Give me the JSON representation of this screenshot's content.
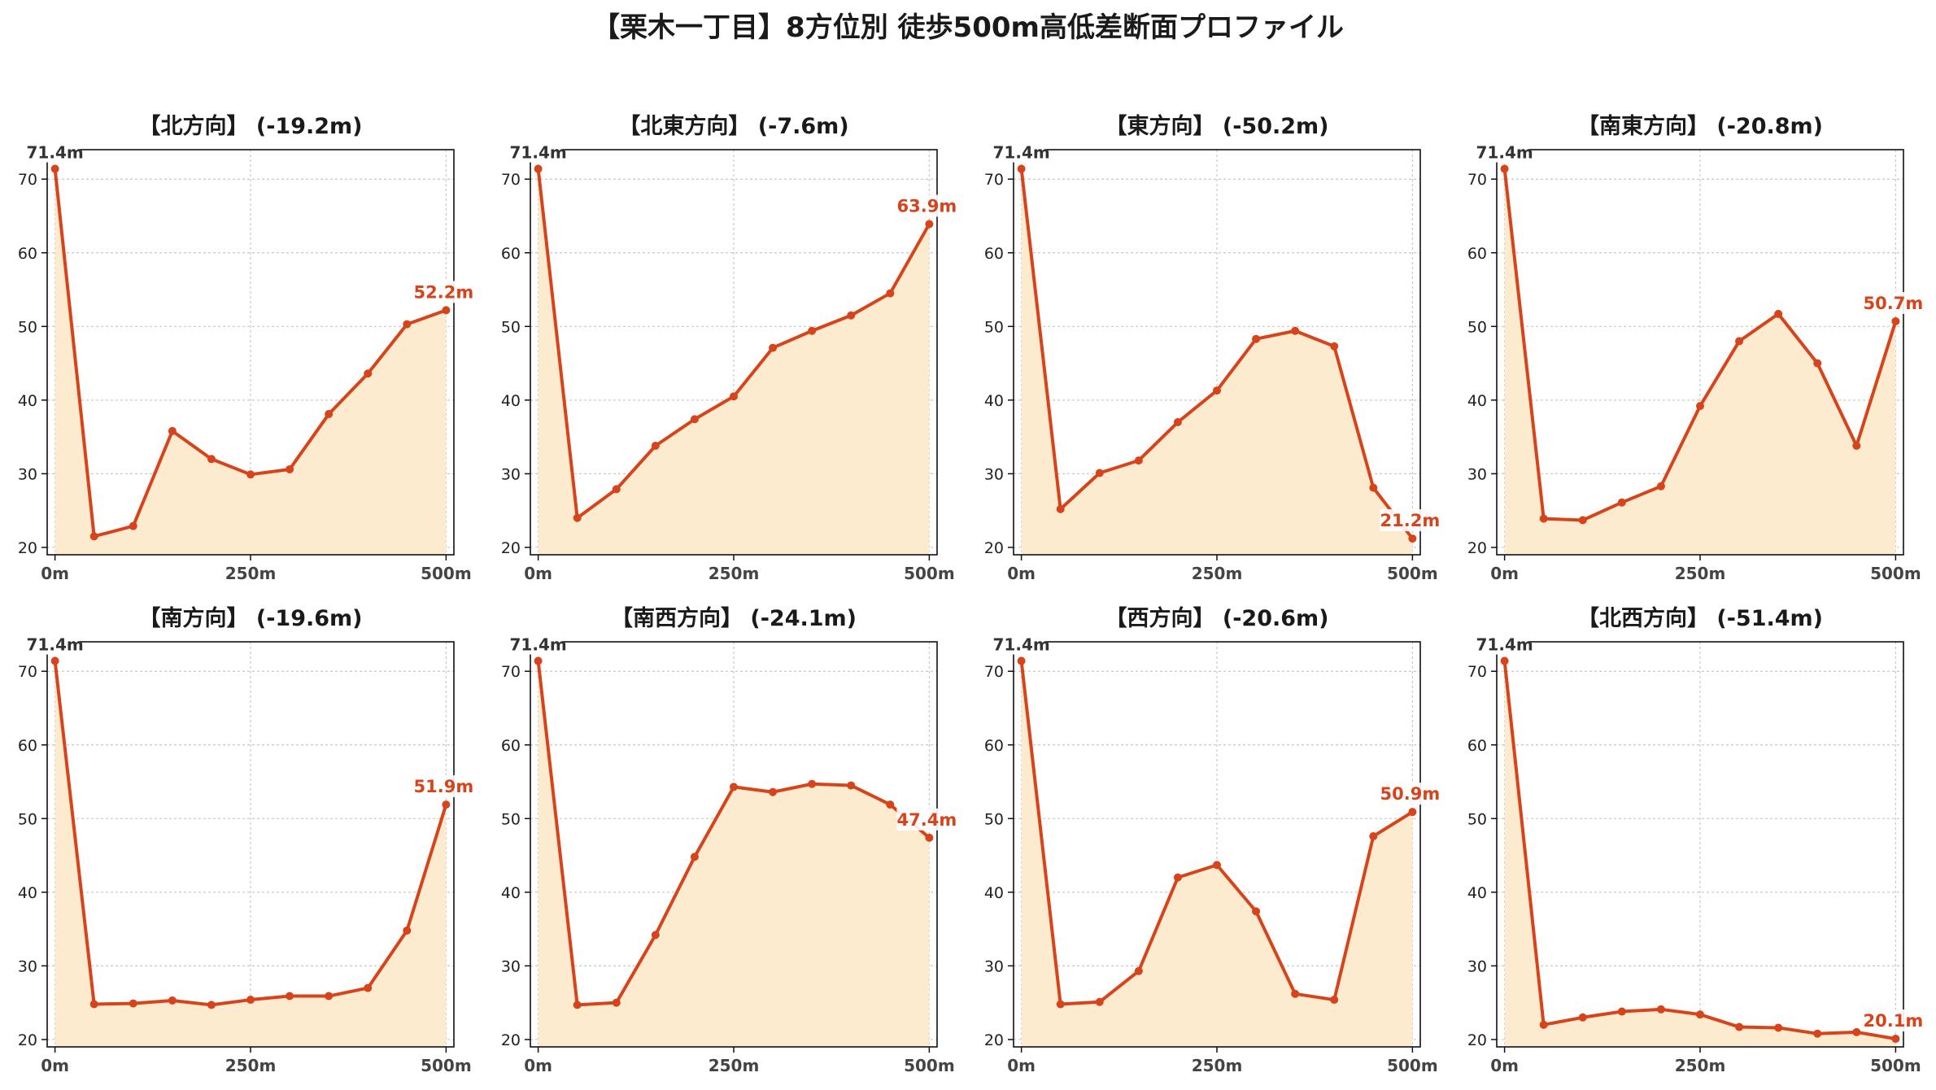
{
  "title": "【栗木一丁目】8方位別 徒歩500m高低差断面プロファイル",
  "colors": {
    "line": "#d7431a",
    "fill": "#fdebd0",
    "grid": "#c8c8c8"
  },
  "chart_data": [
    {
      "type": "area",
      "title": "【北方向】 (-19.2m)",
      "x": [
        0,
        50,
        100,
        150,
        200,
        250,
        300,
        350,
        400,
        450,
        500
      ],
      "values": [
        71.4,
        21.5,
        22.9,
        35.8,
        32.0,
        29.9,
        30.6,
        38.1,
        43.6,
        50.3,
        52.2
      ],
      "start_label": "71.4m",
      "end_label": "52.2m",
      "x_ticks": [
        "0m",
        "250m",
        "500m"
      ],
      "y_ticks": [
        "20",
        "30",
        "40",
        "50",
        "60",
        "70"
      ],
      "ylim": [
        19,
        74
      ],
      "xlim": [
        -10,
        510
      ],
      "grid": true
    },
    {
      "type": "area",
      "title": "【北東方向】 (-7.6m)",
      "x": [
        0,
        50,
        100,
        150,
        200,
        250,
        300,
        350,
        400,
        450,
        500
      ],
      "values": [
        71.4,
        24.0,
        27.9,
        33.8,
        37.4,
        40.5,
        47.1,
        49.4,
        51.5,
        54.5,
        63.9
      ],
      "start_label": "71.4m",
      "end_label": "63.9m",
      "x_ticks": [
        "0m",
        "250m",
        "500m"
      ],
      "y_ticks": [
        "20",
        "30",
        "40",
        "50",
        "60",
        "70"
      ],
      "ylim": [
        19,
        74
      ],
      "xlim": [
        -10,
        510
      ],
      "grid": true
    },
    {
      "type": "area",
      "title": "【東方向】 (-50.2m)",
      "x": [
        0,
        50,
        100,
        150,
        200,
        250,
        300,
        350,
        400,
        450,
        500
      ],
      "values": [
        71.4,
        25.2,
        30.1,
        31.8,
        37.0,
        41.3,
        48.3,
        49.4,
        47.3,
        28.1,
        21.2
      ],
      "start_label": "71.4m",
      "end_label": "21.2m",
      "x_ticks": [
        "0m",
        "250m",
        "500m"
      ],
      "y_ticks": [
        "20",
        "30",
        "40",
        "50",
        "60",
        "70"
      ],
      "ylim": [
        19,
        74
      ],
      "xlim": [
        -10,
        510
      ],
      "grid": true
    },
    {
      "type": "area",
      "title": "【南東方向】 (-20.8m)",
      "x": [
        0,
        50,
        100,
        150,
        200,
        250,
        300,
        350,
        400,
        450,
        500
      ],
      "values": [
        71.4,
        23.9,
        23.7,
        26.1,
        28.3,
        39.2,
        48.0,
        51.7,
        45.0,
        33.8,
        50.7
      ],
      "start_label": "71.4m",
      "end_label": "50.7m",
      "x_ticks": [
        "0m",
        "250m",
        "500m"
      ],
      "y_ticks": [
        "20",
        "30",
        "40",
        "50",
        "60",
        "70"
      ],
      "ylim": [
        19,
        74
      ],
      "xlim": [
        -10,
        510
      ],
      "grid": true
    },
    {
      "type": "area",
      "title": "【南方向】 (-19.6m)",
      "x": [
        0,
        50,
        100,
        150,
        200,
        250,
        300,
        350,
        400,
        450,
        500
      ],
      "values": [
        71.4,
        24.8,
        24.9,
        25.3,
        24.7,
        25.4,
        25.9,
        25.9,
        27.0,
        34.8,
        51.9
      ],
      "start_label": "71.4m",
      "end_label": "51.9m",
      "x_ticks": [
        "0m",
        "250m",
        "500m"
      ],
      "y_ticks": [
        "20",
        "30",
        "40",
        "50",
        "60",
        "70"
      ],
      "ylim": [
        19,
        74
      ],
      "xlim": [
        -10,
        510
      ],
      "grid": true
    },
    {
      "type": "area",
      "title": "【南西方向】 (-24.1m)",
      "x": [
        0,
        50,
        100,
        150,
        200,
        250,
        300,
        350,
        400,
        450,
        500
      ],
      "values": [
        71.4,
        24.7,
        25.0,
        34.2,
        44.8,
        54.3,
        53.6,
        54.7,
        54.5,
        51.9,
        47.4
      ],
      "start_label": "71.4m",
      "end_label": "47.4m",
      "x_ticks": [
        "0m",
        "250m",
        "500m"
      ],
      "y_ticks": [
        "20",
        "30",
        "40",
        "50",
        "60",
        "70"
      ],
      "ylim": [
        19,
        74
      ],
      "xlim": [
        -10,
        510
      ],
      "grid": true
    },
    {
      "type": "area",
      "title": "【西方向】 (-20.6m)",
      "x": [
        0,
        50,
        100,
        150,
        200,
        250,
        300,
        350,
        400,
        450,
        500
      ],
      "values": [
        71.4,
        24.8,
        25.1,
        29.3,
        42.0,
        43.7,
        37.4,
        26.2,
        25.4,
        47.6,
        50.9
      ],
      "start_label": "71.4m",
      "end_label": "50.9m",
      "x_ticks": [
        "0m",
        "250m",
        "500m"
      ],
      "y_ticks": [
        "20",
        "30",
        "40",
        "50",
        "60",
        "70"
      ],
      "ylim": [
        19,
        74
      ],
      "xlim": [
        -10,
        510
      ],
      "grid": true
    },
    {
      "type": "area",
      "title": "【北西方向】 (-51.4m)",
      "x": [
        0,
        50,
        100,
        150,
        200,
        250,
        300,
        350,
        400,
        450,
        500
      ],
      "values": [
        71.4,
        22.0,
        23.0,
        23.8,
        24.1,
        23.4,
        21.7,
        21.6,
        20.8,
        21.0,
        20.1
      ],
      "start_label": "71.4m",
      "end_label": "20.1m",
      "x_ticks": [
        "0m",
        "250m",
        "500m"
      ],
      "y_ticks": [
        "20",
        "30",
        "40",
        "50",
        "60",
        "70"
      ],
      "ylim": [
        19,
        74
      ],
      "xlim": [
        -10,
        510
      ],
      "grid": true
    }
  ]
}
